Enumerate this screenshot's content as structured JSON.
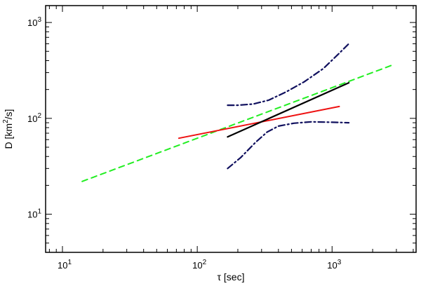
{
  "chart_data": {
    "type": "line",
    "xlabel": "τ [sec]",
    "ylabel_prefix": "D [km",
    "ylabel_sup": "2",
    "ylabel_suffix": "/s]",
    "xscale": "log",
    "yscale": "log",
    "xlim": [
      7.5,
      4200
    ],
    "ylim": [
      4,
      1500
    ],
    "grid": false,
    "x_ticks": [
      {
        "value": 10,
        "base": "10",
        "exp": "1"
      },
      {
        "value": 100,
        "base": "10",
        "exp": "2"
      },
      {
        "value": 1000,
        "base": "10",
        "exp": "3"
      }
    ],
    "y_ticks": [
      {
        "value": 10,
        "base": "10",
        "exp": "1"
      },
      {
        "value": 100,
        "base": "10",
        "exp": "2"
      },
      {
        "value": 1000,
        "base": "10",
        "exp": "3"
      }
    ],
    "series": [
      {
        "color": "#22ee22",
        "dash": "8,6",
        "width": 2,
        "points": [
          [
            14,
            22
          ],
          [
            2800,
            360
          ]
        ]
      },
      {
        "color": "#ee1111",
        "dash": "",
        "width": 2,
        "points": [
          [
            73,
            62
          ],
          [
            1130,
            133
          ]
        ]
      },
      {
        "color": "#000000",
        "dash": "",
        "width": 2.2,
        "points": [
          [
            168,
            64
          ],
          [
            1330,
            235
          ]
        ]
      },
      {
        "color": "#10105e",
        "dash": "9,4,2,4",
        "width": 2.2,
        "points": [
          [
            168,
            137
          ],
          [
            200,
            137
          ],
          [
            260,
            141
          ],
          [
            340,
            155
          ],
          [
            460,
            190
          ],
          [
            620,
            240
          ],
          [
            860,
            330
          ],
          [
            1100,
            460
          ],
          [
            1330,
            600
          ]
        ]
      },
      {
        "color": "#10105e",
        "dash": "9,4,2,4",
        "width": 2.2,
        "points": [
          [
            168,
            30
          ],
          [
            210,
            39
          ],
          [
            270,
            56
          ],
          [
            330,
            72
          ],
          [
            400,
            83
          ],
          [
            520,
            89
          ],
          [
            700,
            92
          ],
          [
            1000,
            91
          ],
          [
            1330,
            90
          ]
        ]
      }
    ]
  }
}
